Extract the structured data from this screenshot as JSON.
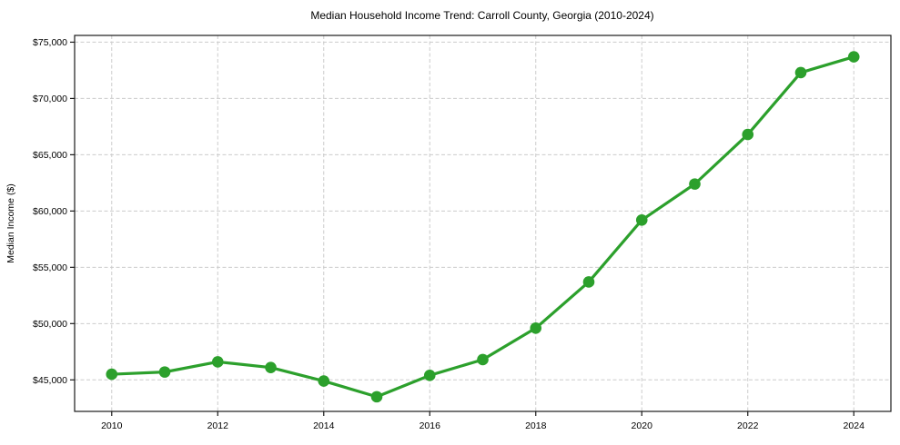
{
  "chart_data": {
    "type": "line",
    "title": "Median Household Income Trend: Carroll County, Georgia (2010-2024)",
    "xlabel": "",
    "ylabel": "Median Income ($)",
    "x": [
      2010,
      2011,
      2012,
      2013,
      2014,
      2015,
      2016,
      2017,
      2018,
      2019,
      2020,
      2021,
      2022,
      2023,
      2024
    ],
    "values": [
      45500,
      45700,
      46600,
      46100,
      44900,
      43500,
      45400,
      46800,
      49600,
      53700,
      59200,
      62400,
      66800,
      72300,
      73700
    ],
    "x_ticks": [
      2010,
      2012,
      2014,
      2016,
      2018,
      2020,
      2022,
      2024
    ],
    "x_tick_labels": [
      "2010",
      "2012",
      "2014",
      "2016",
      "2018",
      "2020",
      "2022",
      "2024"
    ],
    "y_ticks": [
      45000,
      50000,
      55000,
      60000,
      65000,
      70000,
      75000
    ],
    "y_tick_labels": [
      "$45,000",
      "$50,000",
      "$55,000",
      "$60,000",
      "$65,000",
      "$70,000",
      "$75,000"
    ],
    "xlim": [
      2009.3,
      2024.7
    ],
    "ylim": [
      42200,
      75600
    ],
    "grid": true,
    "grid_style": "dashed",
    "legend": "none",
    "marker": "circle",
    "colors": {
      "line": "#2ca02c",
      "marker": "#2ca02c",
      "grid": "#cccccc",
      "axis": "#1a1a1a",
      "background": "#ffffff",
      "text": "#000000"
    }
  }
}
